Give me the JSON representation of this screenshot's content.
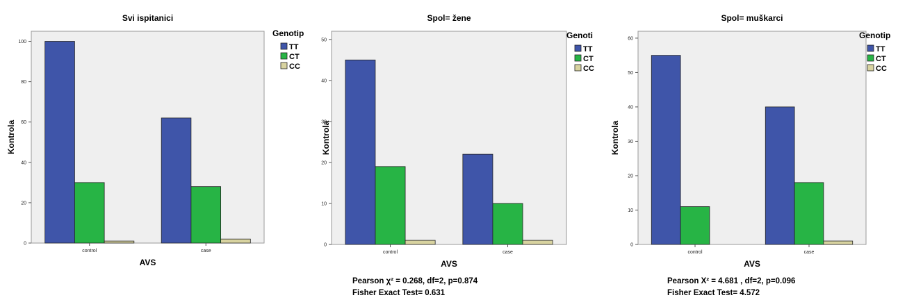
{
  "colors": {
    "TT": "#3f55a9",
    "CT": "#27b445",
    "CC": "#d8d3a0",
    "plot_bg": "#efefef"
  },
  "chart_data": [
    {
      "type": "bar",
      "title": "Svi ispitanici",
      "xlabel": "AVS",
      "ylabel": "Kontrola",
      "categories": [
        "control",
        "case"
      ],
      "ylim": [
        0,
        105
      ],
      "yticks": [
        0,
        20,
        40,
        60,
        80,
        100
      ],
      "legend_title": "Genotip",
      "series": [
        {
          "name": "TT",
          "values": [
            100,
            62
          ]
        },
        {
          "name": "CT",
          "values": [
            30,
            28
          ]
        },
        {
          "name": "CC",
          "values": [
            1,
            2
          ]
        }
      ],
      "stats": []
    },
    {
      "type": "bar",
      "title": "Spol= žene",
      "xlabel": "AVS",
      "ylabel": "Kontrola",
      "categories": [
        "control",
        "case"
      ],
      "ylim": [
        0,
        52
      ],
      "yticks": [
        0,
        10,
        20,
        30,
        40,
        50
      ],
      "legend_title": "Genoti",
      "series": [
        {
          "name": "TT",
          "values": [
            45,
            22
          ]
        },
        {
          "name": "CT",
          "values": [
            19,
            10
          ]
        },
        {
          "name": "CC",
          "values": [
            1,
            1
          ]
        }
      ],
      "stats": [
        "Pearson  χ² = 0.268, df=2, p=0.874",
        "Fisher    Exact Test= 0.631"
      ]
    },
    {
      "type": "bar",
      "title": "Spol= muškarci",
      "xlabel": "AVS",
      "ylabel": "Kontrola",
      "categories": [
        "control",
        "case"
      ],
      "ylim": [
        0,
        62
      ],
      "yticks": [
        0,
        10,
        20,
        30,
        40,
        50,
        60
      ],
      "legend_title": "Genotip",
      "series": [
        {
          "name": "TT",
          "values": [
            55,
            40
          ]
        },
        {
          "name": "CT",
          "values": [
            11,
            18
          ]
        },
        {
          "name": "CC",
          "values": [
            0,
            1
          ]
        }
      ],
      "stats": [
        "Pearson X² = 4.681 , df=2, p=0.096",
        "Fisher    Exact Test= 4.572"
      ]
    }
  ]
}
